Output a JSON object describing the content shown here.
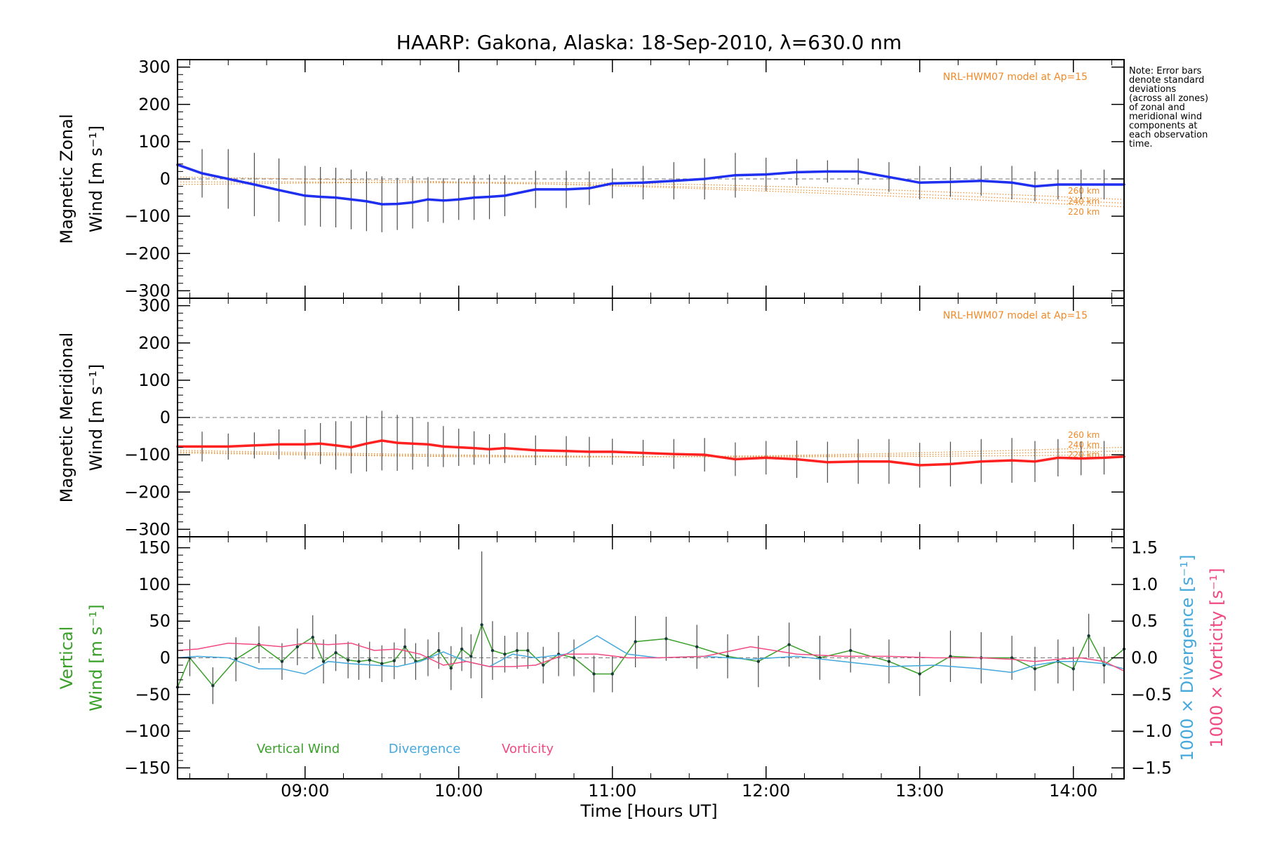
{
  "chart_data": {
    "title": "HAARP: Gakona,  Alaska: 18-Sep-2010, λ=630.0 nm",
    "xlabel": "Time [Hours UT]",
    "x_ticks": [
      "09:00",
      "10:00",
      "11:00",
      "12:00",
      "13:00",
      "14:00"
    ],
    "x_range_hours": [
      8.17,
      14.33
    ],
    "note_lines": [
      "Note: Error bars",
      "denote standard",
      "deviations",
      "(across all zones)",
      "of zonal and",
      "meridional wind",
      "components at",
      "each observation",
      "time."
    ],
    "panels": [
      {
        "type": "line",
        "ylabel_line1": "Magnetic Zonal",
        "ylabel_line2": "Wind [m s⁻¹]",
        "ylim": [
          -320,
          320
        ],
        "yticks": [
          300,
          200,
          100,
          0,
          -100,
          -200,
          -300
        ],
        "model_label": "NRL-HWM07 model at Ap=15",
        "model_altitude_labels": [
          "260 km",
          "240 km",
          "220 km"
        ],
        "series": [
          {
            "color": "#1e2ff0",
            "x": [
              8.17,
              8.33,
              8.5,
              8.67,
              8.83,
              9.0,
              9.1,
              9.2,
              9.3,
              9.4,
              9.5,
              9.6,
              9.7,
              9.8,
              9.9,
              10.0,
              10.1,
              10.2,
              10.3,
              10.5,
              10.7,
              10.85,
              11.0,
              11.2,
              11.4,
              11.6,
              11.8,
              12.0,
              12.2,
              12.4,
              12.6,
              12.8,
              13.0,
              13.2,
              13.4,
              13.6,
              13.75,
              13.9,
              14.05,
              14.2,
              14.33
            ],
            "y": [
              38,
              15,
              0,
              -15,
              -30,
              -45,
              -48,
              -50,
              -55,
              -60,
              -68,
              -67,
              -63,
              -55,
              -58,
              -55,
              -50,
              -48,
              -45,
              -28,
              -28,
              -25,
              -12,
              -10,
              -5,
              0,
              10,
              12,
              18,
              20,
              20,
              5,
              -10,
              -8,
              -5,
              -10,
              -20,
              -15,
              -15,
              -15,
              -15
            ],
            "error": [
              60,
              65,
              80,
              85,
              85,
              80,
              80,
              80,
              80,
              80,
              75,
              70,
              70,
              60,
              60,
              55,
              60,
              60,
              55,
              50,
              50,
              45,
              40,
              45,
              50,
              55,
              60,
              45,
              35,
              30,
              35,
              40,
              45,
              40,
              40,
              45,
              40,
              40,
              40,
              40,
              35
            ]
          }
        ]
      },
      {
        "type": "line",
        "ylabel_line1": "Magnetic Meridional",
        "ylabel_line2": "Wind [m s⁻¹]",
        "ylim": [
          -320,
          320
        ],
        "yticks": [
          300,
          200,
          100,
          0,
          -100,
          -200,
          -300
        ],
        "model_label": "NRL-HWM07 model at Ap=15",
        "model_altitude_labels": [
          "260 km",
          "240 km",
          "220 km"
        ],
        "series": [
          {
            "color": "#ff2020",
            "x": [
              8.17,
              8.33,
              8.5,
              8.67,
              8.83,
              9.0,
              9.1,
              9.2,
              9.3,
              9.4,
              9.5,
              9.6,
              9.7,
              9.8,
              9.9,
              10.0,
              10.1,
              10.2,
              10.3,
              10.5,
              10.7,
              10.85,
              11.0,
              11.2,
              11.4,
              11.6,
              11.8,
              12.0,
              12.2,
              12.4,
              12.6,
              12.8,
              13.0,
              13.2,
              13.4,
              13.6,
              13.75,
              13.9,
              14.05,
              14.2,
              14.33
            ],
            "y": [
              -78,
              -78,
              -78,
              -75,
              -72,
              -72,
              -70,
              -75,
              -80,
              -70,
              -62,
              -68,
              -70,
              -72,
              -78,
              -80,
              -82,
              -85,
              -82,
              -88,
              -90,
              -92,
              -92,
              -95,
              -98,
              -100,
              -112,
              -108,
              -112,
              -120,
              -118,
              -118,
              -128,
              -125,
              -118,
              -115,
              -118,
              -108,
              -110,
              -108,
              -105
            ],
            "error": [
              50,
              40,
              35,
              35,
              40,
              40,
              55,
              65,
              70,
              75,
              80,
              75,
              70,
              60,
              55,
              50,
              45,
              40,
              40,
              40,
              40,
              40,
              35,
              35,
              40,
              45,
              45,
              45,
              50,
              55,
              60,
              60,
              60,
              60,
              60,
              60,
              55,
              50,
              45,
              45,
              40
            ]
          }
        ]
      },
      {
        "type": "line",
        "ylabel_line1": "Vertical",
        "ylabel_line2": "Wind [m s⁻¹]",
        "ylim": [
          -165,
          165
        ],
        "yticks": [
          150,
          100,
          50,
          0,
          -50,
          -100,
          -150
        ],
        "right_axis": {
          "ylim": [
            -1.65,
            1.65
          ],
          "yticks": [
            1.5,
            1.0,
            0.5,
            0.0,
            -0.5,
            -1.0,
            -1.5
          ],
          "tick_labels": [
            "1.5",
            "1.0",
            "0.5",
            "0.0",
            "−0.5",
            "−1.0",
            "−1.5"
          ],
          "label_divergence": "1000 × Divergence [s⁻¹]",
          "label_vorticity": "1000 × Vorticity [s⁻¹]"
        },
        "legend": [
          "Vertical Wind",
          "Divergence",
          "Vorticity"
        ],
        "series": [
          {
            "name": "Vertical Wind",
            "color": "#3aa02a",
            "x": [
              8.17,
              8.25,
              8.4,
              8.55,
              8.7,
              8.85,
              8.95,
              9.05,
              9.12,
              9.2,
              9.28,
              9.35,
              9.42,
              9.5,
              9.58,
              9.65,
              9.72,
              9.8,
              9.87,
              9.95,
              10.02,
              10.08,
              10.15,
              10.22,
              10.3,
              10.38,
              10.45,
              10.55,
              10.65,
              10.75,
              10.88,
              11.0,
              11.15,
              11.35,
              11.55,
              11.75,
              11.95,
              12.15,
              12.35,
              12.55,
              12.8,
              13.0,
              13.2,
              13.4,
              13.6,
              13.75,
              13.9,
              14.0,
              14.1,
              14.2,
              14.33
            ],
            "y": [
              -40,
              0,
              -38,
              -2,
              18,
              -5,
              15,
              28,
              -5,
              7,
              -3,
              -5,
              -3,
              -8,
              -4,
              15,
              -5,
              0,
              10,
              -14,
              12,
              2,
              45,
              10,
              5,
              10,
              10,
              -10,
              5,
              0,
              -22,
              -22,
              22,
              26,
              15,
              2,
              -5,
              18,
              0,
              10,
              -5,
              -22,
              2,
              0,
              0,
              -15,
              -5,
              -15,
              30,
              -10,
              12
            ],
            "error": [
              30,
              25,
              25,
              30,
              25,
              25,
              25,
              30,
              30,
              25,
              25,
              25,
              25,
              25,
              25,
              25,
              25,
              25,
              25,
              30,
              30,
              30,
              100,
              40,
              25,
              25,
              25,
              25,
              30,
              25,
              25,
              25,
              35,
              30,
              30,
              30,
              35,
              30,
              30,
              30,
              30,
              30,
              35,
              35,
              30,
              30,
              30,
              30,
              30,
              25,
              25
            ]
          },
          {
            "name": "Divergence",
            "color": "#44a8dc",
            "x": [
              8.17,
              8.3,
              8.5,
              8.7,
              8.85,
              9.0,
              9.15,
              9.3,
              9.45,
              9.6,
              9.75,
              9.9,
              10.05,
              10.2,
              10.35,
              10.5,
              10.7,
              10.9,
              11.1,
              11.3,
              11.6,
              11.9,
              12.2,
              12.5,
              12.8,
              13.1,
              13.4,
              13.6,
              13.75,
              13.9,
              14.05,
              14.2,
              14.33
            ],
            "y": [
              0.0,
              0.02,
              0.0,
              -0.15,
              -0.15,
              -0.22,
              -0.05,
              -0.08,
              -0.1,
              -0.12,
              -0.05,
              0.08,
              -0.05,
              -0.12,
              0.05,
              0.0,
              0.05,
              0.3,
              0.05,
              0.0,
              0.02,
              -0.02,
              0.02,
              -0.05,
              -0.12,
              -0.1,
              -0.15,
              -0.2,
              -0.1,
              -0.05,
              -0.05,
              -0.08,
              -0.15
            ]
          },
          {
            "name": "Vorticity",
            "color": "#f04a80",
            "x": [
              8.17,
              8.3,
              8.5,
              8.7,
              8.85,
              9.0,
              9.15,
              9.3,
              9.45,
              9.6,
              9.75,
              9.9,
              10.05,
              10.2,
              10.35,
              10.5,
              10.7,
              10.9,
              11.1,
              11.3,
              11.6,
              11.9,
              12.2,
              12.5,
              12.8,
              13.1,
              13.4,
              13.6,
              13.75,
              13.9,
              14.05,
              14.2,
              14.33
            ],
            "y": [
              0.1,
              0.12,
              0.2,
              0.18,
              0.15,
              0.2,
              0.18,
              0.2,
              0.1,
              0.12,
              0.05,
              -0.1,
              -0.05,
              -0.12,
              -0.12,
              -0.1,
              0.05,
              0.05,
              0.0,
              0.0,
              0.02,
              0.15,
              0.05,
              0.02,
              0.02,
              0.0,
              0.0,
              -0.02,
              -0.05,
              -0.02,
              0.0,
              -0.05,
              -0.18
            ]
          }
        ]
      }
    ]
  }
}
